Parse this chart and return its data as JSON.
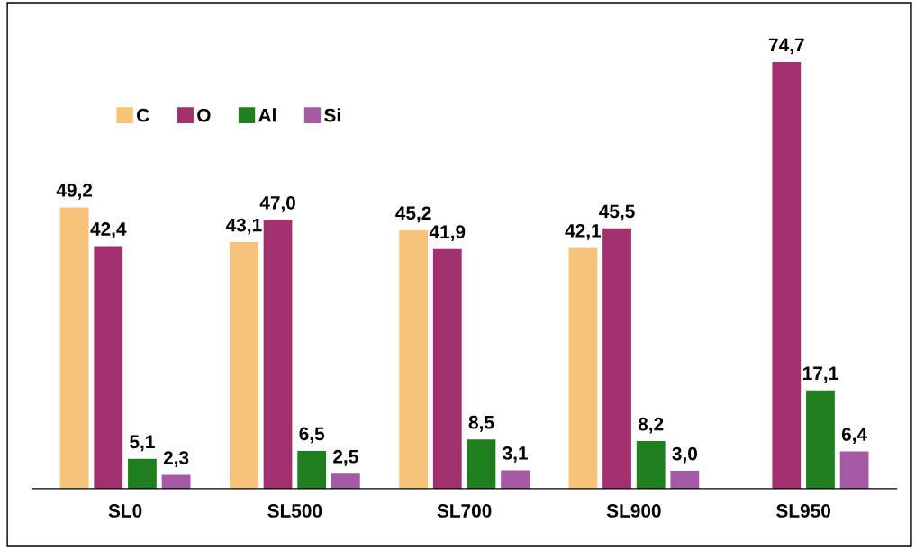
{
  "chart_data": {
    "type": "bar",
    "categories": [
      "SL0",
      "SL500",
      "SL700",
      "SL900",
      "SL950"
    ],
    "series": [
      {
        "name": "C",
        "color": "#f7c27a",
        "values": [
          49.2,
          43.1,
          45.2,
          42.1,
          null
        ],
        "value_labels": [
          "49,2",
          "43,1",
          "45,2",
          "42,1",
          null
        ]
      },
      {
        "name": "O",
        "color": "#a3306e",
        "values": [
          42.4,
          47.0,
          41.9,
          45.5,
          74.7
        ],
        "value_labels": [
          "42,4",
          "47,0",
          "41,9",
          "45,5",
          "74,7"
        ]
      },
      {
        "name": "Al",
        "color": "#1f7f1f",
        "values": [
          5.1,
          6.5,
          8.5,
          8.2,
          17.1
        ],
        "value_labels": [
          "5,1",
          "6,5",
          "8,5",
          "8,2",
          "17,1"
        ]
      },
      {
        "name": "Si",
        "color": "#a45aa4",
        "values": [
          2.3,
          2.5,
          3.1,
          3.0,
          6.4
        ],
        "value_labels": [
          "2,3",
          "2,5",
          "3,1",
          "3,0",
          "6,4"
        ]
      }
    ],
    "tick_labels": "x",
    "grid": false,
    "legend": "top left"
  }
}
